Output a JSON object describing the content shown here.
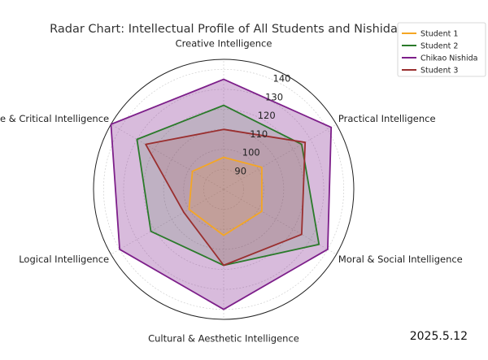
{
  "chart_data": {
    "type": "radar",
    "title": "Radar Chart: Intellectual Profile of All Students and Nishida",
    "axes": [
      "Creative Intelligence",
      "Practical Intelligence",
      "Moral & Social Intelligence",
      "Cultural & Aesthetic Intelligence",
      "Logical Intelligence",
      "Reflective & Critical Intelligence"
    ],
    "radial_range": [
      80,
      145
    ],
    "radial_ticks": [
      90,
      100,
      110,
      120,
      130,
      140
    ],
    "series": [
      {
        "name": "Student 1",
        "color": "#f5a623",
        "values": [
          96,
          102,
          102,
          103,
          100,
          98
        ]
      },
      {
        "name": "Student 2",
        "color": "#2a7a2a",
        "values": [
          122,
          125,
          135,
          118,
          122,
          130
        ]
      },
      {
        "name": "Chikao Nishida",
        "color": "#7d1f8a",
        "values": [
          135,
          142,
          140,
          140,
          140,
          145
        ]
      },
      {
        "name": "Student 3",
        "color": "#9a2f2f",
        "values": [
          110,
          127,
          125,
          118,
          103,
          125
        ]
      }
    ],
    "legend_position": "top-right",
    "grid": true
  },
  "date_label": "2025.5.12"
}
